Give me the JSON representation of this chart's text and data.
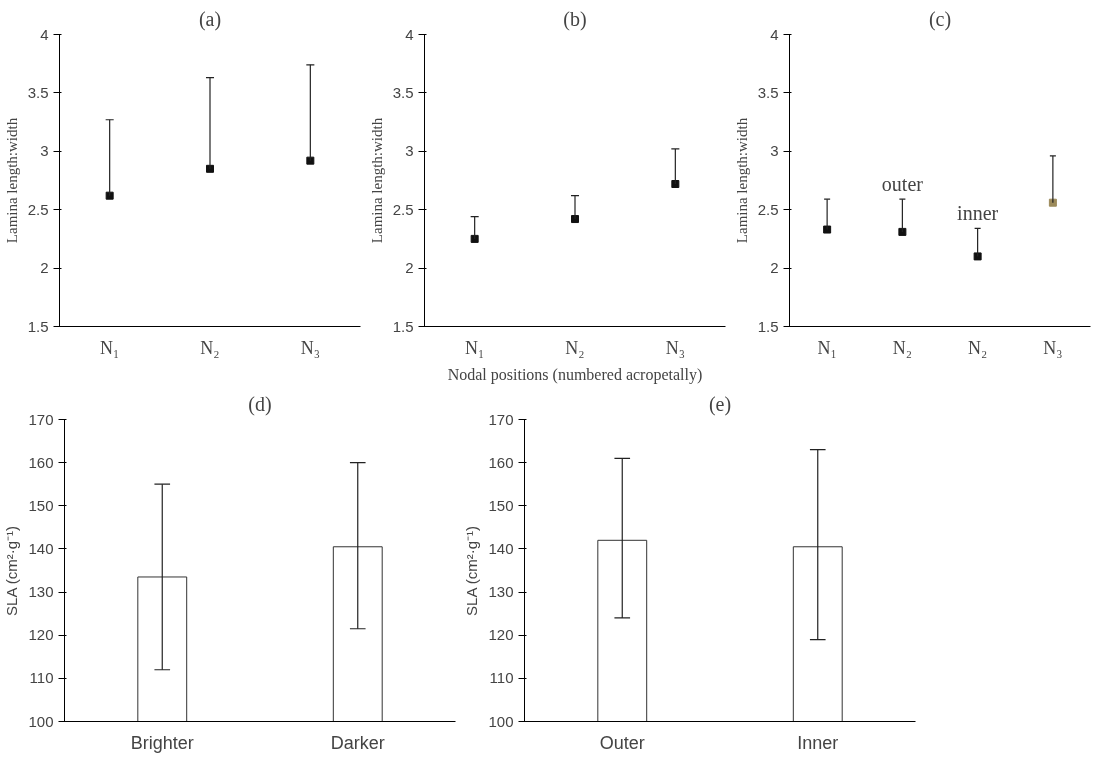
{
  "chart_data": [
    {
      "type": "scatter",
      "title": "(a)",
      "ylabel": "Lamina length:width",
      "categories": [
        "N₁",
        "N₂",
        "N₃"
      ],
      "marker": "square",
      "ylim": [
        1.5,
        4
      ],
      "yticks": [
        1.5,
        2,
        2.5,
        3,
        3.5,
        4
      ],
      "series": [
        {
          "color": "#111111",
          "values": [
            2.62,
            2.85,
            2.92
          ],
          "errors": [
            [
              2.62,
              3.27
            ],
            [
              2.85,
              3.63
            ],
            [
              2.92,
              3.74
            ]
          ]
        }
      ]
    },
    {
      "type": "scatter",
      "title": "(b)",
      "ylabel": "Lamina length:width",
      "xlabel": "Nodal positions (numbered acropetally)",
      "categories": [
        "N₁",
        "N₂",
        "N₃"
      ],
      "marker": "square",
      "ylim": [
        1.5,
        4
      ],
      "yticks": [
        1.5,
        2,
        2.5,
        3,
        3.5,
        4
      ],
      "series": [
        {
          "color": "#111111",
          "values": [
            2.25,
            2.42,
            2.72
          ],
          "errors": [
            [
              2.25,
              2.44
            ],
            [
              2.42,
              2.62
            ],
            [
              2.72,
              3.02
            ]
          ]
        }
      ]
    },
    {
      "type": "scatter",
      "title": "(c)",
      "ylabel": "Lamina length:width",
      "categories": [
        "N₁",
        "N₂",
        "N₂",
        "N₃"
      ],
      "marker": "square",
      "ylim": [
        1.5,
        4
      ],
      "yticks": [
        1.5,
        2,
        2.5,
        3,
        3.5,
        4
      ],
      "annotations": [
        "outer",
        "inner"
      ],
      "series": [
        {
          "colors": [
            "#111111",
            "#111111",
            "#111111",
            "#9c8a5a"
          ],
          "values": [
            2.33,
            2.31,
            2.1,
            2.56
          ],
          "errors": [
            [
              2.33,
              2.59
            ],
            [
              2.31,
              2.59
            ],
            [
              2.1,
              2.34
            ],
            [
              2.56,
              2.96
            ]
          ]
        }
      ]
    },
    {
      "type": "bar",
      "title": "(d)",
      "ylabel": "SLA (cm²·g⁻¹)",
      "categories": [
        "Brighter",
        "Darker"
      ],
      "ylim": [
        100,
        170
      ],
      "yticks": [
        100,
        110,
        120,
        130,
        140,
        150,
        160,
        170
      ],
      "series": [
        {
          "color": "#ffffff",
          "values": [
            133.5,
            140.5
          ],
          "errors": [
            [
              112,
              155
            ],
            [
              121.5,
              160
            ]
          ]
        }
      ]
    },
    {
      "type": "bar",
      "title": "(e)",
      "ylabel": "SLA (cm²·g⁻¹)",
      "categories": [
        "Outer",
        "Inner"
      ],
      "ylim": [
        100,
        170
      ],
      "yticks": [
        100,
        110,
        120,
        130,
        140,
        150,
        160,
        170
      ],
      "series": [
        {
          "color": "#ffffff",
          "values": [
            142,
            140.5
          ],
          "errors": [
            [
              124,
              161
            ],
            [
              119,
              163
            ]
          ]
        }
      ]
    }
  ]
}
